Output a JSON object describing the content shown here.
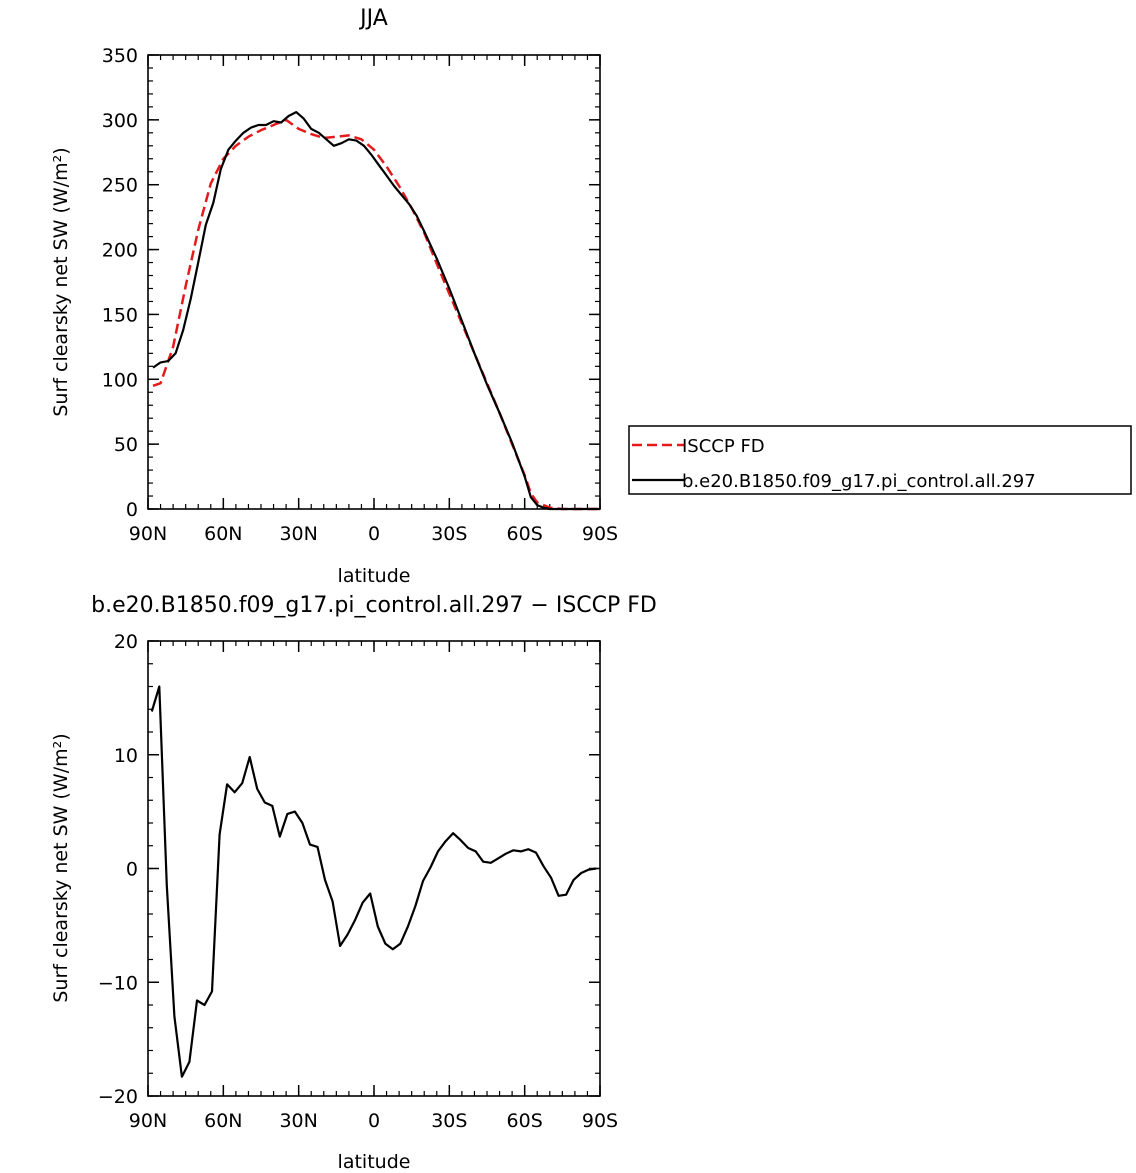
{
  "chart_data": [
    {
      "type": "line",
      "title": "JJA",
      "xlabel": "latitude",
      "ylabel": "Surf clearsky net SW (W/m²)",
      "xlim": [
        90,
        -90
      ],
      "ylim": [
        0,
        350
      ],
      "xticks": [
        90,
        60,
        30,
        0,
        -30,
        -60,
        -90
      ],
      "xtick_labels": [
        "90N",
        "60N",
        "30N",
        "0",
        "30S",
        "60S",
        "90S"
      ],
      "yticks": [
        0,
        50,
        100,
        150,
        200,
        250,
        300,
        350
      ],
      "ytick_labels": [
        "0",
        "50",
        "100",
        "150",
        "200",
        "250",
        "300",
        "350"
      ],
      "grid": false,
      "legend_position": "right",
      "series": [
        {
          "name": "ISCCP FD",
          "color": "#e41a1c",
          "style": "dashed",
          "x": [
            88,
            85,
            80,
            75,
            70,
            65,
            60,
            55,
            50,
            45,
            40,
            35,
            30,
            25,
            20,
            15,
            10,
            5,
            0,
            -5,
            -10,
            -15,
            -20,
            -25,
            -30,
            -35,
            -40,
            -45,
            -50,
            -55,
            -60,
            -62.5,
            -65,
            -70,
            -75,
            -80,
            -85,
            -90
          ],
          "y": [
            95,
            97,
            125,
            172,
            215,
            251,
            270,
            280,
            287,
            292,
            296,
            300,
            293,
            289,
            286,
            287,
            288,
            285,
            277,
            264,
            249,
            232,
            213,
            189,
            166,
            143,
            120,
            97,
            74,
            50,
            26,
            12,
            5,
            1,
            0,
            0,
            0,
            0
          ]
        },
        {
          "name": "b.e20.B1850.f09_g17.pi_control.all.297",
          "color": "#000000",
          "style": "solid",
          "x": [
            88,
            85,
            82,
            79,
            76,
            73,
            70,
            67,
            64,
            61,
            58,
            55,
            52,
            49,
            46,
            43,
            40,
            37,
            34,
            31,
            28,
            25,
            22,
            19,
            16,
            13,
            10,
            7,
            4,
            1,
            -2,
            -5,
            -8,
            -11,
            -14,
            -17,
            -20,
            -25,
            -30,
            -35,
            -40,
            -45,
            -50,
            -55,
            -60,
            -62.5,
            -65,
            -67.5,
            -70,
            -75,
            -80,
            -85,
            -90
          ],
          "y": [
            109,
            113,
            114,
            120,
            138,
            162,
            190,
            219,
            236,
            262,
            277,
            284,
            290,
            294,
            296,
            296,
            299,
            298,
            303,
            306,
            301,
            293,
            290,
            285,
            280,
            282,
            285,
            284,
            280,
            273,
            265,
            257,
            249,
            242,
            235,
            226,
            214,
            193,
            170,
            145,
            120,
            96,
            74,
            51,
            25,
            9,
            3,
            1,
            0,
            0,
            0,
            0,
            0
          ]
        }
      ]
    },
    {
      "type": "line",
      "title": "b.e20.B1850.f09_g17.pi_control.all.297 − ISCCP FD",
      "xlabel": "latitude",
      "ylabel": "Surf clearsky net SW (W/m²)",
      "xlim": [
        90,
        -90
      ],
      "ylim": [
        -20,
        20
      ],
      "xticks": [
        90,
        60,
        30,
        0,
        -30,
        -60,
        -90
      ],
      "xtick_labels": [
        "90N",
        "60N",
        "30N",
        "0",
        "30S",
        "60S",
        "90S"
      ],
      "yticks": [
        -20,
        -10,
        0,
        10,
        20
      ],
      "ytick_labels": [
        "−20",
        "−10",
        "0",
        "10",
        "20"
      ],
      "grid": false,
      "series": [
        {
          "color": "#000000",
          "style": "solid",
          "x": [
            88.5,
            85.5,
            82.5,
            79.5,
            76.5,
            73.5,
            70.5,
            67.5,
            64.5,
            61.5,
            58.5,
            55.5,
            52.5,
            49.5,
            46.5,
            43.5,
            40.5,
            37.5,
            34.5,
            31.5,
            28.5,
            25.5,
            22.5,
            19.5,
            16.5,
            13.5,
            10.5,
            7.5,
            4.5,
            1.5,
            -1.5,
            -4.5,
            -7.5,
            -10.5,
            -13.5,
            -16.5,
            -19.5,
            -22.5,
            -25.5,
            -28.5,
            -31.5,
            -34.5,
            -37.5,
            -40.5,
            -43.5,
            -46.5,
            -49.5,
            -52.5,
            -55.5,
            -58.5,
            -61.5,
            -64.5,
            -67.5,
            -70.5,
            -73.5,
            -76.5,
            -79.5,
            -82.5,
            -85.5,
            -88.5
          ],
          "y": [
            13.8,
            16.0,
            -1.5,
            -13.0,
            -18.3,
            -17.0,
            -11.6,
            -12.0,
            -10.8,
            3.0,
            7.4,
            6.7,
            7.5,
            9.8,
            7.0,
            5.8,
            5.5,
            2.8,
            4.8,
            5.0,
            4.0,
            2.1,
            1.9,
            -1.0,
            -2.9,
            -6.8,
            -5.8,
            -4.5,
            -3.0,
            -2.2,
            -5.1,
            -6.6,
            -7.1,
            -6.6,
            -5.1,
            -3.3,
            -1.1,
            0.1,
            1.5,
            2.4,
            3.1,
            2.5,
            1.8,
            1.5,
            0.6,
            0.5,
            0.9,
            1.3,
            1.6,
            1.5,
            1.7,
            1.4,
            0.2,
            -0.8,
            -2.4,
            -2.3,
            -1.0,
            -0.4,
            -0.1,
            0.0
          ]
        }
      ]
    }
  ]
}
